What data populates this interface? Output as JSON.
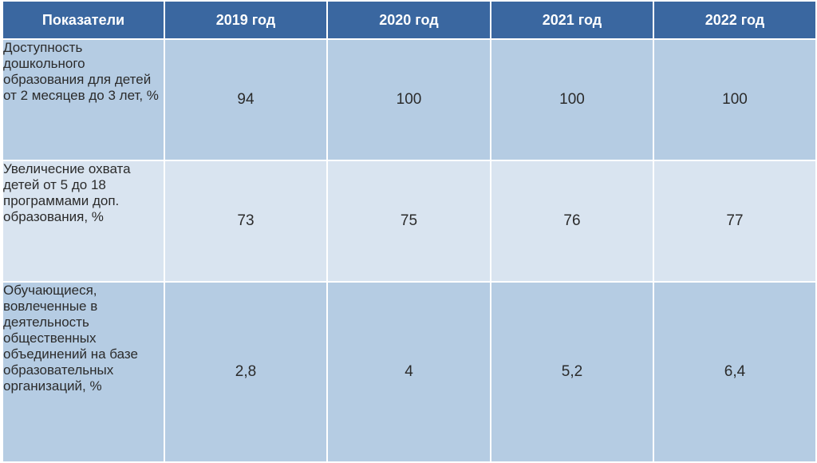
{
  "table": {
    "headers": [
      "Показатели",
      "2019 год",
      "2020 год",
      "2021 год",
      "2022 год"
    ],
    "rows": [
      {
        "label": "Доступность дошкольного образования для детей от 2 месяцев до 3 лет, %",
        "values": [
          "94",
          "100",
          "100",
          "100"
        ]
      },
      {
        "label": "Увеличесние охвата детей от 5 до 18 программами доп. образования, %",
        "values": [
          "73",
          "75",
          "76",
          "77"
        ]
      },
      {
        "label": "Обучающиеся, вовлеченные в деятельность общественных объединений на базе образовательных организаций, %",
        "values": [
          "2,8",
          "4",
          "5,2",
          "6,4"
        ]
      }
    ]
  },
  "colors": {
    "header_bg": "#3a67a0",
    "row_dark_bg": "#b5cce3",
    "row_light_bg": "#d9e4f0",
    "header_text": "#ffffff",
    "body_text": "#2b2b2b"
  }
}
